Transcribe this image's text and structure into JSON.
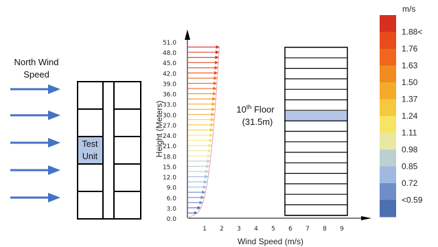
{
  "wind_label": {
    "line1": "North Wind",
    "line2": "Speed"
  },
  "test_unit": {
    "line1": "Test",
    "line2": "Unit"
  },
  "floor_label": {
    "prefix": "10",
    "sup": "th",
    "suffix": " Floor",
    "height": "(31.5m)"
  },
  "profile_chart": {
    "ylabel": "Height (Meters)",
    "xlabel": "Wind Speed (m/s)",
    "y_ticks": [
      "0.0",
      "3.0",
      "6.0",
      "9.0",
      "12.0",
      "15.0",
      "18.0",
      "21.0",
      "24.0",
      "27.0",
      "30.0",
      "33.0",
      "36.0",
      "39.0",
      "42.0",
      "45.0",
      "48.0",
      "51.0"
    ],
    "x_ticks": [
      "1",
      "2",
      "3",
      "4",
      "5",
      "6",
      "7",
      "8",
      "9"
    ]
  },
  "chart_data": {
    "type": "line",
    "xlabel": "Wind Speed (m/s)",
    "ylabel": "Height (Meters)",
    "xlim": [
      0,
      9.5
    ],
    "ylim": [
      0,
      51
    ],
    "series": [
      {
        "heights": [
          0.0,
          1.5,
          3.0,
          4.5,
          6.0,
          7.5,
          9.0,
          10.5,
          12.0,
          13.5,
          15.0,
          16.5,
          18.0,
          19.5,
          21.0,
          22.5,
          24.0,
          25.5,
          27.0,
          28.5,
          30.0,
          31.5,
          33.0,
          34.5,
          36.0,
          37.5,
          39.0,
          40.5,
          42.0,
          43.5,
          45.0,
          46.5,
          48.0,
          49.5
        ],
        "speeds": [
          0.0,
          0.6,
          0.78,
          0.9,
          0.98,
          1.05,
          1.11,
          1.16,
          1.21,
          1.25,
          1.29,
          1.33,
          1.36,
          1.4,
          1.43,
          1.46,
          1.49,
          1.51,
          1.54,
          1.56,
          1.59,
          1.61,
          1.63,
          1.65,
          1.68,
          1.7,
          1.72,
          1.74,
          1.76,
          1.78,
          1.8,
          1.82,
          1.84,
          1.86
        ]
      }
    ]
  },
  "legend": {
    "unit": "m/s",
    "labels": [
      "1.88<",
      "1.76",
      "1.63",
      "1.50",
      "1.37",
      "1.24",
      "1.11",
      "0.98",
      "0.85",
      "0.72",
      "<0.59"
    ],
    "colors": [
      "#d7301f",
      "#e84c1c",
      "#f0661d",
      "#f28c1e",
      "#f4ab2a",
      "#f6c83d",
      "#f6e465",
      "#e9e8a2",
      "#bcd0cf",
      "#9fb9e3",
      "#6f8dc6",
      "#4b6fb0"
    ]
  },
  "colors": {
    "arrow": "#4472c4",
    "highlight": "#b4c6e7",
    "profile_curve": "#e8a0b0"
  }
}
